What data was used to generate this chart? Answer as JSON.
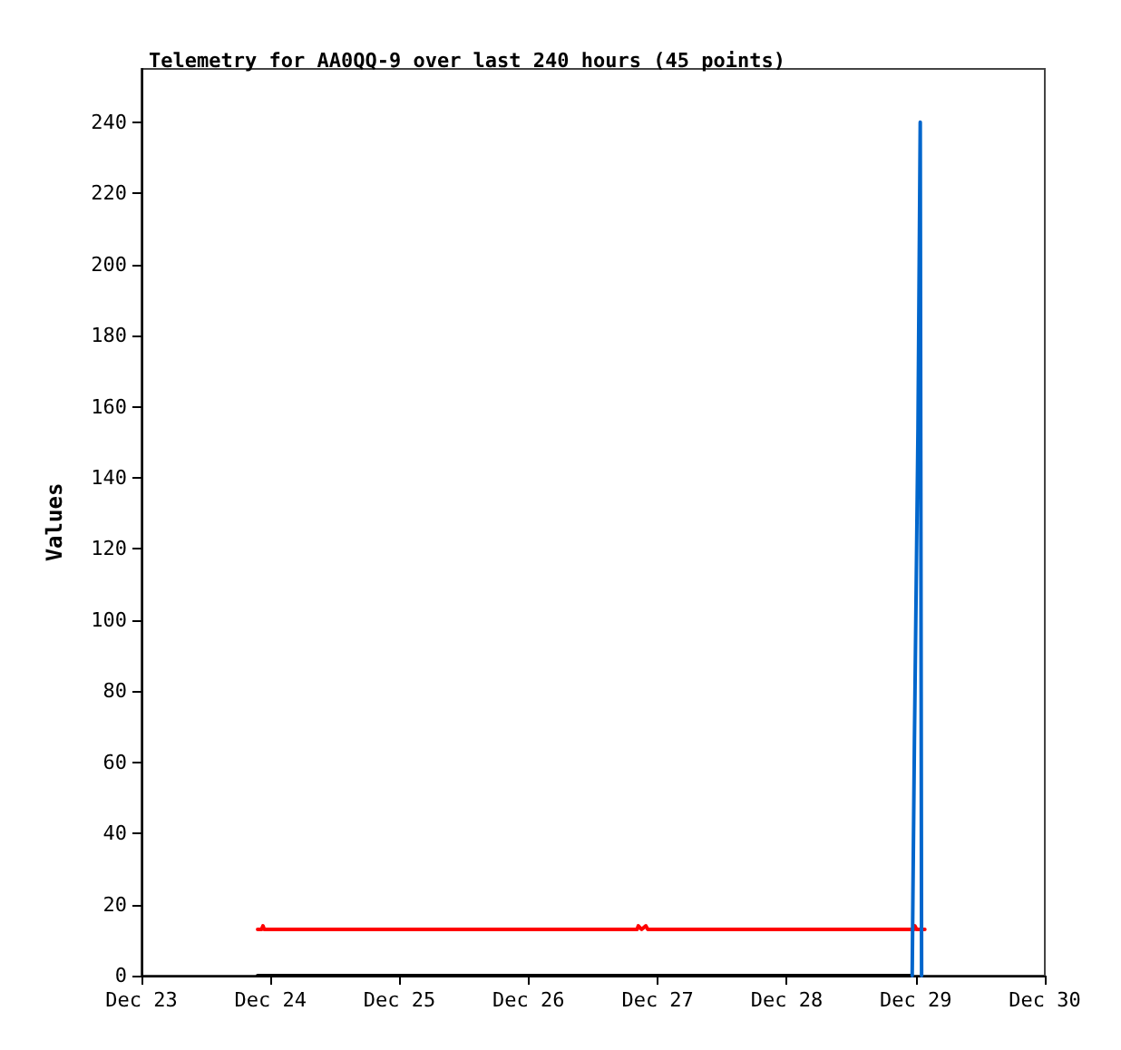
{
  "chart_data": {
    "type": "line",
    "title": "Telemetry for AA0QQ-9 over last 240 hours (45 points)",
    "ylabel": "Values",
    "xlim": [
      "--12-23",
      "--12-30"
    ],
    "xticks": [
      {
        "value": "--12-23",
        "label": "Dec 23"
      },
      {
        "value": "--12-24",
        "label": "Dec 24"
      },
      {
        "value": "--12-25",
        "label": "Dec 25"
      },
      {
        "value": "--12-26",
        "label": "Dec 26"
      },
      {
        "value": "--12-27",
        "label": "Dec 27"
      },
      {
        "value": "--12-28",
        "label": "Dec 28"
      },
      {
        "value": "--12-29",
        "label": "Dec 29"
      },
      {
        "value": "--12-30",
        "label": "Dec 30"
      }
    ],
    "ylim": [
      0,
      255
    ],
    "yticks": [
      0,
      20,
      40,
      60,
      80,
      100,
      120,
      140,
      160,
      180,
      200,
      220,
      240
    ],
    "grid": false,
    "marker": "none",
    "line_style": "solid",
    "series": [
      {
        "color": "#000000",
        "x": [
          "--12-23T21:36",
          "--12-28T23:20"
        ],
        "values": [
          0,
          0
        ]
      },
      {
        "color": "#ff0000",
        "x": [
          "--12-23T21:36",
          "--12-23T22:20",
          "--12-23T22:36",
          "--12-23T22:50",
          "--12-26T20:10",
          "--12-26T20:24",
          "--12-26T21:00",
          "--12-26T21:48",
          "--12-26T22:10",
          "--12-28T23:40",
          "--12-28T23:50",
          "--12-29T00:10",
          "--12-29T01:41"
        ],
        "values": [
          13,
          13,
          14,
          13,
          13,
          14,
          13,
          14,
          13,
          13,
          14,
          13,
          13
        ]
      },
      {
        "color": "#0066cc",
        "x": [
          "--12-28T23:20",
          "--12-28T23:28",
          "--12-28T23:45",
          "--12-29T00:05",
          "--12-29T00:25",
          "--12-29T00:50",
          "--12-29T01:05"
        ],
        "values": [
          0,
          22,
          66,
          110,
          154,
          240,
          0
        ]
      }
    ]
  }
}
